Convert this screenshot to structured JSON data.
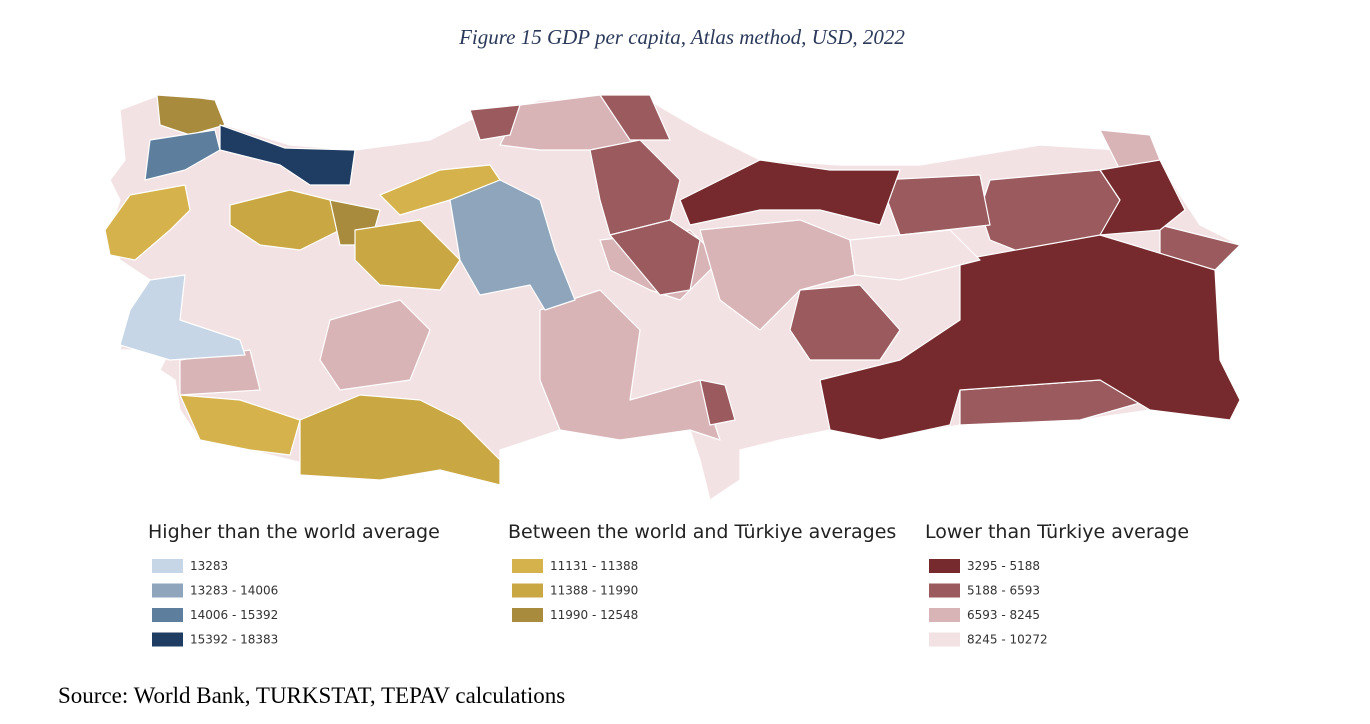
{
  "title": "Figure 15 GDP per capita, Atlas method, USD, 2022",
  "legend": [
    {
      "heading": "Higher than the world average",
      "items": [
        {
          "label": "13283",
          "color": "#c6d6e6"
        },
        {
          "label": "13283 - 14006",
          "color": "#8ea5bb"
        },
        {
          "label": "14006 - 15392",
          "color": "#5d7e9d"
        },
        {
          "label": "15392 - 18383",
          "color": "#1f3d63"
        }
      ]
    },
    {
      "heading": "Between the world and Türkiye averages",
      "items": [
        {
          "label": "11131 - 11388",
          "color": "#d5b24c"
        },
        {
          "label": "11388 - 11990",
          "color": "#c9a743"
        },
        {
          "label": "11990 - 12548",
          "color": "#a98b3d"
        }
      ]
    },
    {
      "heading": "Lower than Türkiye average",
      "items": [
        {
          "label": "3295 - 5188",
          "color": "#772a2d"
        },
        {
          "label": "5188 - 6593",
          "color": "#9b5a5e"
        },
        {
          "label": "6593 - 8245",
          "color": "#d8b4b7"
        },
        {
          "label": "8245 - 10272",
          "color": "#f3e2e3"
        }
      ]
    }
  ],
  "source": "Source: World Bank, TURKSTAT, TEPAV calculations"
}
